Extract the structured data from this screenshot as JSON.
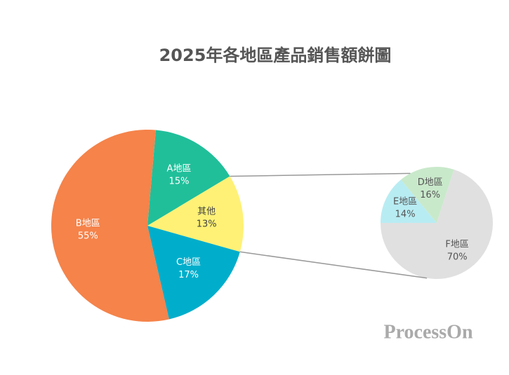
{
  "chart_data": {
    "type": "pie-of-pie",
    "title": "2025年各地區產品銷售額餅圖",
    "categories": [
      "A地區",
      "其他",
      "C地區",
      "B地區"
    ],
    "values": [
      15,
      13,
      17,
      55
    ],
    "value_labels": [
      "15%",
      "13%",
      "17%",
      "55%"
    ],
    "colors": [
      "#20bf9a",
      "#fff176",
      "#00aecb",
      "#f5834a"
    ],
    "secondary": {
      "categories": [
        "E地區",
        "D地區",
        "F地區"
      ],
      "values": [
        14,
        16,
        70
      ],
      "value_labels": [
        "14%",
        "16%",
        "70%"
      ],
      "colors": [
        "#b8ecf3",
        "#c9e9cb",
        "#e0e0e0"
      ]
    }
  },
  "watermark": "ProcessOn"
}
